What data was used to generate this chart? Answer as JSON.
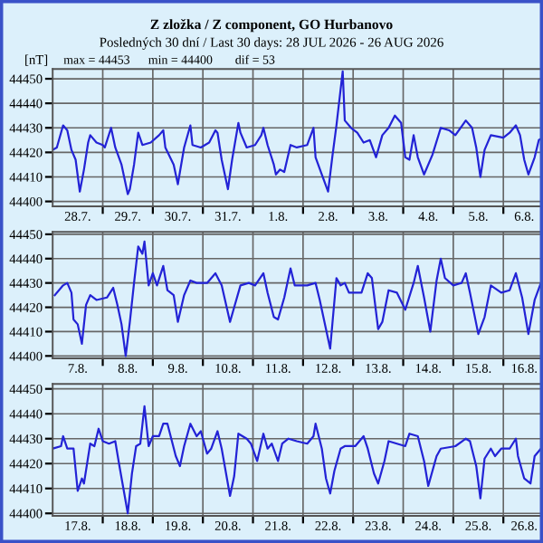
{
  "chart_data": [
    {
      "type": "line",
      "title": "Z zložka / Z component, GO Hurbanovo",
      "subtitle": "Posledných 30 dní / Last 30 days: 28 JUL 2026 - 26 AUG 2026",
      "ylabel": "[nT]",
      "annotations": [
        "max = 44453",
        "min = 44400",
        "dif = 53"
      ],
      "xlim": [
        "2026-07-28T00:00",
        "2026-08-06T19:00"
      ],
      "ylim": [
        44398,
        44454
      ],
      "yticks": [
        44400,
        44410,
        44420,
        44430,
        44440,
        44450
      ],
      "xticks": [
        {
          "value": "2026-07-29T00:00",
          "label": null
        },
        {
          "value": "2026-07-30T00:00",
          "label": null
        },
        {
          "value": "2026-07-31T00:00",
          "label": null
        },
        {
          "value": "2026-08-01T00:00",
          "label": null
        },
        {
          "value": "2026-08-02T00:00",
          "label": null
        },
        {
          "value": "2026-08-03T00:00",
          "label": null
        },
        {
          "value": "2026-08-04T00:00",
          "label": null
        },
        {
          "value": "2026-08-05T00:00",
          "label": null
        },
        {
          "value": "2026-08-06T00:00",
          "label": null
        },
        {
          "value": "2026-07-28T12:00",
          "label": "28.7."
        },
        {
          "value": "2026-07-29T12:00",
          "label": "29.7."
        },
        {
          "value": "2026-07-30T12:00",
          "label": "30.7."
        },
        {
          "value": "2026-07-31T12:00",
          "label": "31.7."
        },
        {
          "value": "2026-08-01T12:00",
          "label": "1.8."
        },
        {
          "value": "2026-08-02T12:00",
          "label": "2.8."
        },
        {
          "value": "2026-08-03T12:00",
          "label": "3.8."
        },
        {
          "value": "2026-08-04T12:00",
          "label": "4.8."
        },
        {
          "value": "2026-08-05T12:00",
          "label": "5.8."
        },
        {
          "value": "2026-08-06T10:00",
          "label": "6.8."
        }
      ],
      "grid": true,
      "line_style": "solid",
      "series": [
        {
          "color": "#2323d6",
          "x": [
            "2026-07-28T00:00",
            "2026-07-28T02:00",
            "2026-07-28T05:00",
            "2026-07-28T07:00",
            "2026-07-28T09:00",
            "2026-07-28T11:00",
            "2026-07-28T13:00",
            "2026-07-28T15:00",
            "2026-07-28T17:00",
            "2026-07-28T18:00",
            "2026-07-28T21:00",
            "2026-07-29T00:00",
            "2026-07-29T01:00",
            "2026-07-29T04:00",
            "2026-07-29T06:00",
            "2026-07-29T09:00",
            "2026-07-29T12:00",
            "2026-07-29T13:00",
            "2026-07-29T15:00",
            "2026-07-29T17:00",
            "2026-07-29T19:00",
            "2026-07-29T23:00",
            "2026-07-30T03:00",
            "2026-07-30T05:00",
            "2026-07-30T06:00",
            "2026-07-30T10:00",
            "2026-07-30T12:00",
            "2026-07-30T13:00",
            "2026-07-30T15:00",
            "2026-07-30T18:00",
            "2026-07-30T19:00",
            "2026-07-30T23:00",
            "2026-07-31T03:00",
            "2026-07-31T06:00",
            "2026-07-31T07:00",
            "2026-07-31T09:00",
            "2026-07-31T12:00",
            "2026-07-31T14:00",
            "2026-07-31T17:00",
            "2026-07-31T18:00",
            "2026-07-31T21:00",
            "2026-08-01T01:00",
            "2026-08-01T04:00",
            "2026-08-01T05:00",
            "2026-08-01T07:00",
            "2026-08-01T10:00",
            "2026-08-01T11:00",
            "2026-08-01T13:00",
            "2026-08-01T15:00",
            "2026-08-01T18:00",
            "2026-08-01T21:00",
            "2026-08-02T02:00",
            "2026-08-02T05:00",
            "2026-08-02T06:00",
            "2026-08-02T09:00",
            "2026-08-02T12:00",
            "2026-08-02T14:00",
            "2026-08-02T16:00",
            "2026-08-02T19:00",
            "2026-08-02T20:00",
            "2026-08-02T23:00",
            "2026-08-03T02:00",
            "2026-08-03T05:00",
            "2026-08-03T08:00",
            "2026-08-03T11:00",
            "2026-08-03T14:00",
            "2026-08-03T17:00",
            "2026-08-03T20:00",
            "2026-08-03T23:00",
            "2026-08-04T01:00",
            "2026-08-04T03:00",
            "2026-08-04T05:00",
            "2026-08-04T07:00",
            "2026-08-04T10:00",
            "2026-08-04T14:00",
            "2026-08-04T18:00",
            "2026-08-04T22:00",
            "2026-08-05T01:00",
            "2026-08-05T06:00",
            "2026-08-05T09:00",
            "2026-08-05T11:00",
            "2026-08-05T13:00",
            "2026-08-05T15:00",
            "2026-08-05T18:00",
            "2026-08-06T00:00",
            "2026-08-06T03:00",
            "2026-08-06T06:00",
            "2026-08-06T08:00",
            "2026-08-06T10:00",
            "2026-08-06T12:00",
            "2026-08-06T15:00",
            "2026-08-06T17:00",
            "2026-08-06T19:00"
          ],
          "values": [
            44421,
            44422,
            44431,
            44429,
            44421,
            44417,
            44404,
            44413,
            44424,
            44427,
            44424,
            44423,
            44422,
            44430,
            44422,
            44415,
            44403,
            44405,
            44415,
            44428,
            44423,
            44424,
            44427,
            44429,
            44422,
            44415,
            44407,
            44412,
            44422,
            44431,
            44423,
            44422,
            44424,
            44429,
            44428,
            44417,
            44405,
            44417,
            44432,
            44428,
            44422,
            44423,
            44427,
            44430,
            44423,
            44415,
            44411,
            44413,
            44412,
            44423,
            44422,
            44423,
            44430,
            44418,
            44411,
            44404,
            44418,
            44431,
            44453,
            44433,
            44430,
            44428,
            44424,
            44425,
            44418,
            44427,
            44430,
            44435,
            44432,
            44418,
            44417,
            44427,
            44418,
            44411,
            44419,
            44430,
            44429,
            44427,
            44433,
            44430,
            44422,
            44410,
            44421,
            44427,
            44426,
            44428,
            44431,
            44427,
            44417,
            44411,
            44418,
            44425,
            44426
          ]
        }
      ]
    },
    {
      "type": "line",
      "xlim": [
        "2026-08-07T00:00",
        "2026-08-16T19:00"
      ],
      "ylim": [
        44399,
        44451
      ],
      "yticks": [
        44400,
        44410,
        44420,
        44430,
        44440,
        44450
      ],
      "xticks": [
        {
          "value": "2026-08-08T00:00",
          "label": null
        },
        {
          "value": "2026-08-09T00:00",
          "label": null
        },
        {
          "value": "2026-08-10T00:00",
          "label": null
        },
        {
          "value": "2026-08-11T00:00",
          "label": null
        },
        {
          "value": "2026-08-12T00:00",
          "label": null
        },
        {
          "value": "2026-08-13T00:00",
          "label": null
        },
        {
          "value": "2026-08-14T00:00",
          "label": null
        },
        {
          "value": "2026-08-15T00:00",
          "label": null
        },
        {
          "value": "2026-08-16T00:00",
          "label": null
        },
        {
          "value": "2026-08-07T12:00",
          "label": "7.8."
        },
        {
          "value": "2026-08-08T12:00",
          "label": "8.8."
        },
        {
          "value": "2026-08-09T12:00",
          "label": "9.8."
        },
        {
          "value": "2026-08-10T12:00",
          "label": "10.8."
        },
        {
          "value": "2026-08-11T12:00",
          "label": "11.8."
        },
        {
          "value": "2026-08-12T12:00",
          "label": "12.8."
        },
        {
          "value": "2026-08-13T12:00",
          "label": "13.8."
        },
        {
          "value": "2026-08-14T12:00",
          "label": "14.8."
        },
        {
          "value": "2026-08-15T12:00",
          "label": "15.8."
        },
        {
          "value": "2026-08-16T10:00",
          "label": "16.8."
        }
      ],
      "grid": true,
      "line_style": "solid",
      "series": [
        {
          "color": "#2323d6",
          "x": [
            "2026-08-07T01:00",
            "2026-08-07T05:00",
            "2026-08-07T07:00",
            "2026-08-07T09:00",
            "2026-08-07T10:00",
            "2026-08-07T12:00",
            "2026-08-07T14:00",
            "2026-08-07T16:00",
            "2026-08-07T18:00",
            "2026-08-07T21:00",
            "2026-08-08T02:00",
            "2026-08-08T05:00",
            "2026-08-08T07:00",
            "2026-08-08T09:00",
            "2026-08-08T11:00",
            "2026-08-08T13:00",
            "2026-08-08T15:00",
            "2026-08-08T17:00",
            "2026-08-08T19:00",
            "2026-08-08T20:00",
            "2026-08-08T22:00",
            "2026-08-09T00:00",
            "2026-08-09T02:00",
            "2026-08-09T05:00",
            "2026-08-09T07:00",
            "2026-08-09T10:00",
            "2026-08-09T12:00",
            "2026-08-09T15:00",
            "2026-08-09T18:00",
            "2026-08-09T21:00",
            "2026-08-10T02:00",
            "2026-08-10T06:00",
            "2026-08-10T09:00",
            "2026-08-10T13:00",
            "2026-08-10T15:00",
            "2026-08-10T18:00",
            "2026-08-10T22:00",
            "2026-08-11T01:00",
            "2026-08-11T05:00",
            "2026-08-11T07:00",
            "2026-08-11T10:00",
            "2026-08-11T12:00",
            "2026-08-11T15:00",
            "2026-08-11T18:00",
            "2026-08-11T20:00",
            "2026-08-12T02:00",
            "2026-08-12T06:00",
            "2026-08-12T08:00",
            "2026-08-12T13:00",
            "2026-08-12T16:00",
            "2026-08-12T18:00",
            "2026-08-12T20:00",
            "2026-08-12T22:00",
            "2026-08-13T04:00",
            "2026-08-13T07:00",
            "2026-08-13T09:00",
            "2026-08-13T12:00",
            "2026-08-13T14:00",
            "2026-08-13T17:00",
            "2026-08-13T21:00",
            "2026-08-14T01:00",
            "2026-08-14T05:00",
            "2026-08-14T07:00",
            "2026-08-14T10:00",
            "2026-08-14T13:00",
            "2026-08-14T16:00",
            "2026-08-14T18:00",
            "2026-08-14T20:00",
            "2026-08-15T00:00",
            "2026-08-15T04:00",
            "2026-08-15T06:00",
            "2026-08-15T08:00",
            "2026-08-15T12:00",
            "2026-08-15T15:00",
            "2026-08-15T18:00",
            "2026-08-15T23:00",
            "2026-08-16T03:00",
            "2026-08-16T06:00",
            "2026-08-16T09:00",
            "2026-08-16T12:00",
            "2026-08-16T15:00",
            "2026-08-16T18:00",
            "2026-08-16T19:00"
          ],
          "values": [
            44425,
            44429,
            44430,
            44426,
            44415,
            44413,
            44405,
            44421,
            44425,
            44423,
            44424,
            44428,
            44421,
            44413,
            44400,
            44414,
            44430,
            44445,
            44442,
            44447,
            44429,
            44434,
            44429,
            44437,
            44427,
            44425,
            44414,
            44425,
            44431,
            44430,
            44430,
            44434,
            44429,
            44414,
            44420,
            44429,
            44430,
            44429,
            44434,
            44426,
            44416,
            44415,
            44424,
            44436,
            44429,
            44429,
            44430,
            44423,
            44403,
            44432,
            44429,
            44430,
            44426,
            44426,
            44434,
            44432,
            44411,
            44414,
            44427,
            44426,
            44419,
            44430,
            44437,
            44424,
            44410,
            44431,
            44440,
            44432,
            44429,
            44430,
            44434,
            44426,
            44409,
            44416,
            44429,
            44426,
            44427,
            44434,
            44424,
            44409,
            44423,
            44430,
            44427
          ]
        }
      ]
    },
    {
      "type": "line",
      "xlim": [
        "2026-08-17T00:00",
        "2026-08-26T19:00"
      ],
      "ylim": [
        44399,
        44452
      ],
      "yticks": [
        44400,
        44410,
        44420,
        44430,
        44440,
        44450
      ],
      "xticks": [
        {
          "value": "2026-08-18T00:00",
          "label": null
        },
        {
          "value": "2026-08-19T00:00",
          "label": null
        },
        {
          "value": "2026-08-20T00:00",
          "label": null
        },
        {
          "value": "2026-08-21T00:00",
          "label": null
        },
        {
          "value": "2026-08-22T00:00",
          "label": null
        },
        {
          "value": "2026-08-23T00:00",
          "label": null
        },
        {
          "value": "2026-08-24T00:00",
          "label": null
        },
        {
          "value": "2026-08-25T00:00",
          "label": null
        },
        {
          "value": "2026-08-26T00:00",
          "label": null
        },
        {
          "value": "2026-08-17T12:00",
          "label": "17.8."
        },
        {
          "value": "2026-08-18T12:00",
          "label": "18.8."
        },
        {
          "value": "2026-08-19T12:00",
          "label": "19.8."
        },
        {
          "value": "2026-08-20T12:00",
          "label": "20.8."
        },
        {
          "value": "2026-08-21T12:00",
          "label": "21.8."
        },
        {
          "value": "2026-08-22T12:00",
          "label": "22.8."
        },
        {
          "value": "2026-08-23T12:00",
          "label": "23.8."
        },
        {
          "value": "2026-08-24T12:00",
          "label": "24.8."
        },
        {
          "value": "2026-08-25T12:00",
          "label": "25.8."
        },
        {
          "value": "2026-08-26T10:00",
          "label": "26.8."
        }
      ],
      "grid": true,
      "line_style": "solid",
      "series": [
        {
          "color": "#2323d6",
          "x": [
            "2026-08-17T00:00",
            "2026-08-17T04:00",
            "2026-08-17T05:00",
            "2026-08-17T07:00",
            "2026-08-17T10:00",
            "2026-08-17T12:00",
            "2026-08-17T14:00",
            "2026-08-17T15:00",
            "2026-08-17T18:00",
            "2026-08-17T20:00",
            "2026-08-17T22:00",
            "2026-08-18T00:00",
            "2026-08-18T03:00",
            "2026-08-18T06:00",
            "2026-08-18T08:00",
            "2026-08-18T12:00",
            "2026-08-18T14:00",
            "2026-08-18T16:00",
            "2026-08-18T18:00",
            "2026-08-18T20:00",
            "2026-08-18T22:00",
            "2026-08-19T00:00",
            "2026-08-19T03:00",
            "2026-08-19T05:00",
            "2026-08-19T07:00",
            "2026-08-19T11:00",
            "2026-08-19T13:00",
            "2026-08-19T15:00",
            "2026-08-19T18:00",
            "2026-08-19T21:00",
            "2026-08-19T23:00",
            "2026-08-20T02:00",
            "2026-08-20T04:00",
            "2026-08-20T07:00",
            "2026-08-20T09:00",
            "2026-08-20T13:00",
            "2026-08-20T15:00",
            "2026-08-20T17:00",
            "2026-08-20T21:00",
            "2026-08-20T23:00",
            "2026-08-21T02:00",
            "2026-08-21T05:00",
            "2026-08-21T07:00",
            "2026-08-21T09:00",
            "2026-08-21T12:00",
            "2026-08-21T14:00",
            "2026-08-21T17:00",
            "2026-08-21T21:00",
            "2026-08-22T02:00",
            "2026-08-22T05:00",
            "2026-08-22T06:00",
            "2026-08-22T09:00",
            "2026-08-22T11:00",
            "2026-08-22T13:00",
            "2026-08-22T15:00",
            "2026-08-22T18:00",
            "2026-08-22T20:00",
            "2026-08-23T01:00",
            "2026-08-23T05:00",
            "2026-08-23T07:00",
            "2026-08-23T10:00",
            "2026-08-23T12:00",
            "2026-08-23T15:00",
            "2026-08-23T17:00",
            "2026-08-23T21:00",
            "2026-08-24T01:00",
            "2026-08-24T03:00",
            "2026-08-24T07:00",
            "2026-08-24T10:00",
            "2026-08-24T12:00",
            "2026-08-24T16:00",
            "2026-08-24T18:00",
            "2026-08-25T01:00",
            "2026-08-25T06:00",
            "2026-08-25T08:00",
            "2026-08-25T11:00",
            "2026-08-25T13:00",
            "2026-08-25T15:00",
            "2026-08-25T18:00",
            "2026-08-25T20:00",
            "2026-08-25T23:00",
            "2026-08-26T03:00",
            "2026-08-26T06:00",
            "2026-08-26T07:00",
            "2026-08-26T10:00",
            "2026-08-26T13:00",
            "2026-08-26T15:00",
            "2026-08-26T18:00",
            "2026-08-26T19:00"
          ],
          "values": [
            44426,
            44427,
            44431,
            44426,
            44426,
            44409,
            44414,
            44412,
            44428,
            44427,
            44434,
            44429,
            44428,
            44429,
            44419,
            44400,
            44416,
            44427,
            44428,
            44443,
            44427,
            44431,
            44431,
            44436,
            44436,
            44423,
            44419,
            44427,
            44436,
            44431,
            44433,
            44424,
            44426,
            44433,
            44426,
            44407,
            44415,
            44432,
            44430,
            44428,
            44421,
            44432,
            44426,
            44428,
            44421,
            44428,
            44430,
            44429,
            44428,
            44431,
            44436,
            44426,
            44414,
            44408,
            44417,
            44426,
            44427,
            44427,
            44431,
            44426,
            44416,
            44412,
            44421,
            44429,
            44428,
            44427,
            44432,
            44431,
            44421,
            44411,
            44423,
            44426,
            44427,
            44430,
            44429,
            44419,
            44406,
            44422,
            44426,
            44423,
            44426,
            44426,
            44430,
            44423,
            44414,
            44412,
            44423,
            44426,
            44425
          ]
        }
      ]
    }
  ]
}
